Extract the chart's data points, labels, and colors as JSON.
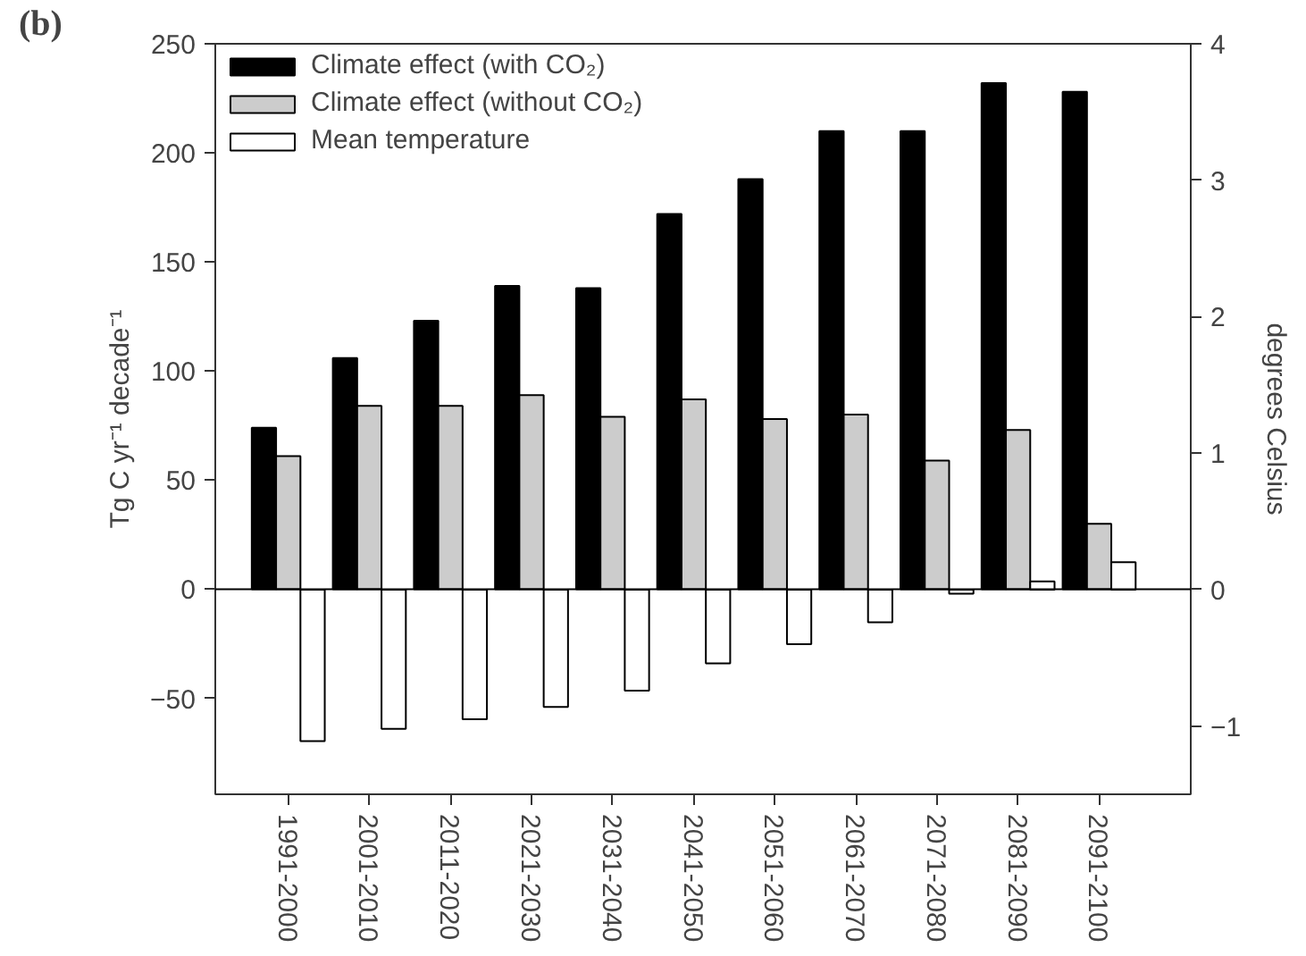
{
  "chart_data": {
    "type": "bar",
    "annotations": [
      "(b)"
    ],
    "categories": [
      "1991-2000",
      "2001-2010",
      "2011-2020",
      "2021-2030",
      "2031-2040",
      "2041-2050",
      "2051-2060",
      "2061-2070",
      "2071-2080",
      "2081-2090",
      "2091-2100"
    ],
    "ylabel": "Tg C yr⁻¹ decade⁻¹",
    "y2label": "degrees Celsius",
    "ylim": [
      -94,
      250
    ],
    "yticks": [
      -50,
      0,
      50,
      100,
      150,
      200,
      250
    ],
    "y2lim": [
      -1.5,
      4
    ],
    "y2ticks": [
      -1,
      0,
      1,
      2,
      3,
      4
    ],
    "legend": "top left",
    "grid": false,
    "ref_lines": [
      {
        "axis": "y",
        "value": 0
      }
    ],
    "series": [
      {
        "name": "Climate effect (with CO₂)",
        "color": "#000000",
        "values": [
          74,
          106,
          123,
          139,
          138,
          172,
          188,
          210,
          210,
          232,
          228
        ]
      },
      {
        "name": "Climate effect (without CO₂)",
        "color": "#cccccc",
        "values": [
          61,
          84,
          84,
          89,
          79,
          87,
          78,
          80,
          59,
          73,
          30
        ]
      },
      {
        "name": "Mean temperature",
        "color": "#ffffff",
        "axis": "y2",
        "values": [
          -1.11,
          -1.02,
          -0.95,
          -0.86,
          -0.74,
          -0.54,
          -0.4,
          -0.24,
          -0.03,
          0.06,
          0.2
        ]
      }
    ]
  }
}
